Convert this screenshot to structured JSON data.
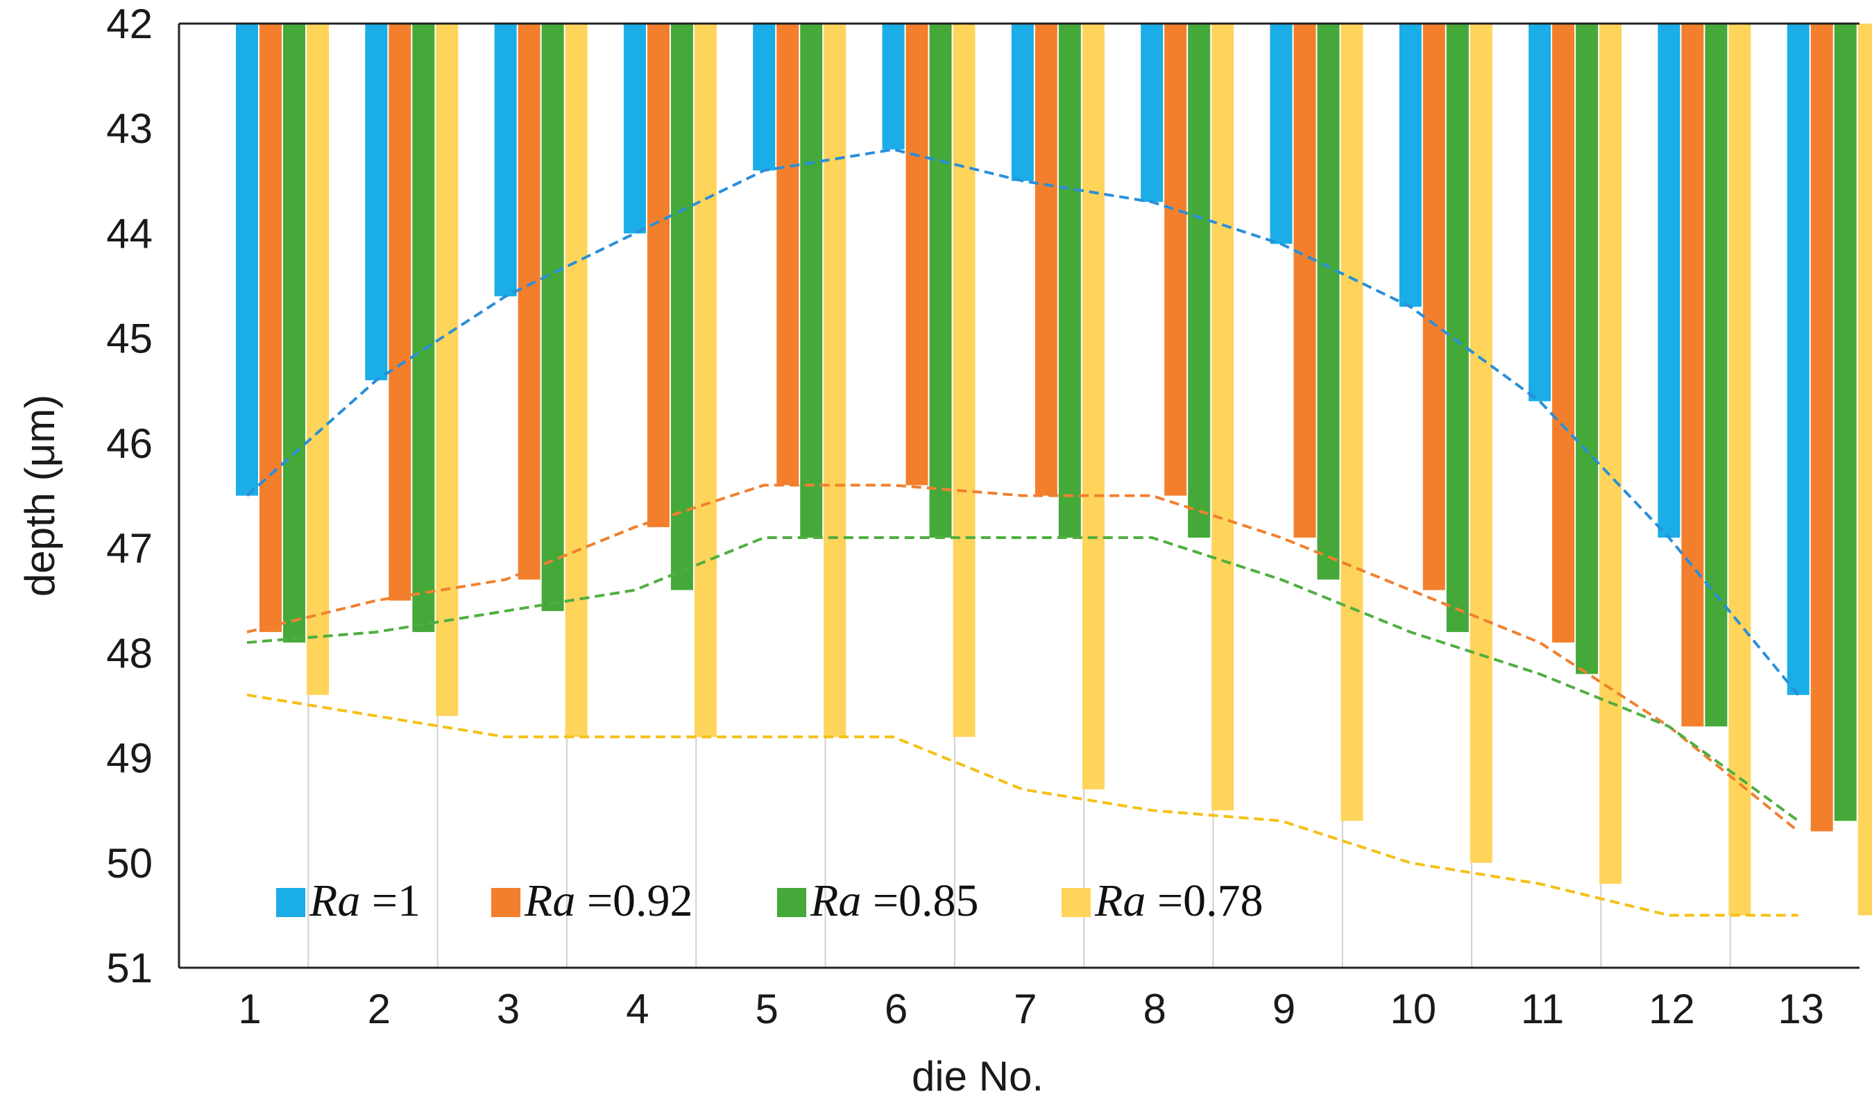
{
  "chart_data": {
    "type": "bar",
    "title": "",
    "xlabel": "die No.",
    "ylabel": "depth (μm)",
    "ylim": [
      42,
      51
    ],
    "y_inverted": true,
    "categories": [
      "1",
      "2",
      "3",
      "4",
      "5",
      "6",
      "7",
      "8",
      "9",
      "10",
      "11",
      "12",
      "13"
    ],
    "yticks": [
      "42",
      "43",
      "44",
      "45",
      "46",
      "47",
      "48",
      "49",
      "50",
      "51"
    ],
    "grid": "vertical",
    "legend_position": "bottom-left",
    "series": [
      {
        "name": "Ra =1",
        "legend_italic": "Ra",
        "legend_rest": " =1",
        "color": "#1AADE8",
        "values": [
          46.5,
          45.4,
          44.6,
          44.0,
          43.4,
          43.2,
          43.5,
          43.7,
          44.1,
          44.7,
          45.6,
          46.9,
          48.4
        ]
      },
      {
        "name": "Ra =0.92",
        "legend_italic": "Ra",
        "legend_rest": " =0.92",
        "color": "#F37F2C",
        "values": [
          47.8,
          47.5,
          47.3,
          46.8,
          46.4,
          46.4,
          46.5,
          46.5,
          46.9,
          47.4,
          47.9,
          48.7,
          49.7
        ]
      },
      {
        "name": "Ra =0.85",
        "legend_italic": "Ra",
        "legend_rest": " =0.85",
        "color": "#45A939",
        "values": [
          47.9,
          47.8,
          47.6,
          47.4,
          46.9,
          46.9,
          46.9,
          46.9,
          47.3,
          47.8,
          48.2,
          48.7,
          49.6
        ]
      },
      {
        "name": "Ra =0.78",
        "legend_italic": "Ra",
        "legend_rest": " =0.78",
        "color": "#FFD45B",
        "values": [
          48.4,
          48.6,
          48.8,
          48.8,
          48.8,
          48.8,
          49.3,
          49.5,
          49.6,
          50.0,
          50.2,
          50.5,
          50.5
        ]
      }
    ],
    "trend_lines": [
      {
        "series": "Ra =1",
        "color": "#2A8FD8",
        "values": [
          46.5,
          45.4,
          44.6,
          44.0,
          43.4,
          43.2,
          43.5,
          43.7,
          44.1,
          44.7,
          45.6,
          46.9,
          48.4
        ]
      },
      {
        "series": "Ra =0.92",
        "color": "#F08030",
        "values": [
          47.8,
          47.5,
          47.3,
          46.8,
          46.4,
          46.4,
          46.5,
          46.5,
          46.9,
          47.4,
          47.9,
          48.7,
          49.7
        ]
      },
      {
        "series": "Ra =0.85",
        "color": "#4FAE40",
        "values": [
          47.9,
          47.8,
          47.6,
          47.4,
          46.9,
          46.9,
          46.9,
          46.9,
          47.3,
          47.8,
          48.2,
          48.7,
          49.6
        ]
      },
      {
        "series": "Ra =0.78",
        "color": "#F5C016",
        "values": [
          48.4,
          48.6,
          48.8,
          48.8,
          48.8,
          48.8,
          49.3,
          49.5,
          49.6,
          50.0,
          50.2,
          50.5,
          50.5
        ]
      }
    ]
  }
}
